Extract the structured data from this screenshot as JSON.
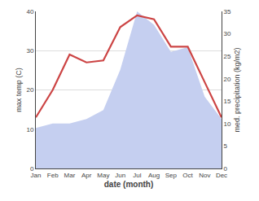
{
  "chart_data": {
    "type": "line",
    "categories": [
      "Jan",
      "Feb",
      "Mar",
      "Apr",
      "May",
      "Jun",
      "Jul",
      "Aug",
      "Sep",
      "Oct",
      "Nov",
      "Dec"
    ],
    "xlabel": "date (month)",
    "ylabel": "max temp (C)",
    "y2label": "med. precipitation (kg/m2)",
    "series": [
      {
        "type": "line",
        "color": "#cc4444",
        "values": [
          13,
          20,
          29,
          27,
          27.5,
          36,
          39,
          38,
          31,
          31,
          22,
          13
        ]
      },
      {
        "type": "area",
        "color": "#c5cff0",
        "axis": "y2",
        "values": [
          9,
          10,
          10,
          11,
          13,
          22,
          35,
          32,
          26,
          27,
          16,
          11
        ]
      }
    ],
    "ylim": [
      0,
      40
    ],
    "yticks": [
      0,
      10,
      20,
      30,
      40
    ],
    "y2lim": [
      0,
      35
    ],
    "y2ticks": [
      0,
      5,
      10,
      15,
      20,
      25,
      30,
      35
    ],
    "grid": true
  }
}
